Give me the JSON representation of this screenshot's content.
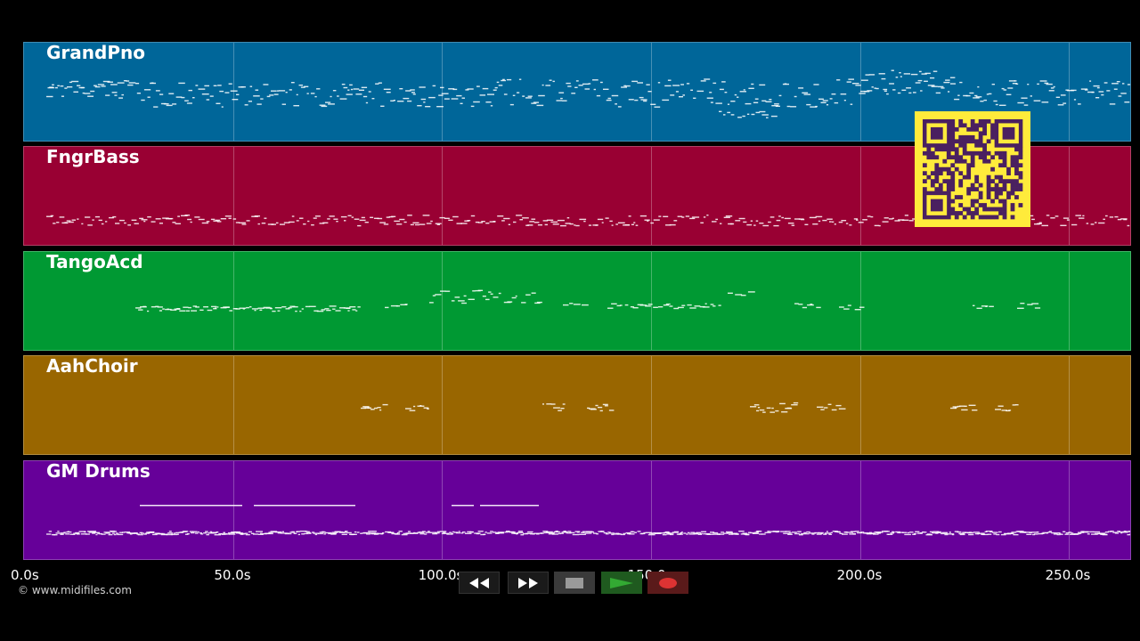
{
  "tracks": [
    {
      "name": "GrandPno",
      "color": "#006699"
    },
    {
      "name": "FngrBass",
      "color": "#990033"
    },
    {
      "name": "TangoAcd",
      "color": "#009933"
    },
    {
      "name": "AahChoir",
      "color": "#996600"
    },
    {
      "name": "GM Drums",
      "color": "#660099"
    }
  ],
  "timeline": {
    "ticks": [
      "0.0s",
      "50.0s",
      "100.0s",
      "150.0s",
      "200.0s",
      "250.0s"
    ]
  },
  "footer": {
    "copyright": "© www.midifiles.com"
  },
  "transport": {
    "rewind_icon": "rewind-icon",
    "fast_forward_icon": "fast-forward-icon",
    "stop_icon": "stop-icon",
    "play_icon": "play-icon",
    "record_icon": "record-icon",
    "play_color": "#33aa33",
    "record_color": "#dd3333"
  },
  "overlay": {
    "qr_icon": "qr-code-icon",
    "qr_color": "#ffeb3b",
    "qr_dark": "#4a2060"
  }
}
